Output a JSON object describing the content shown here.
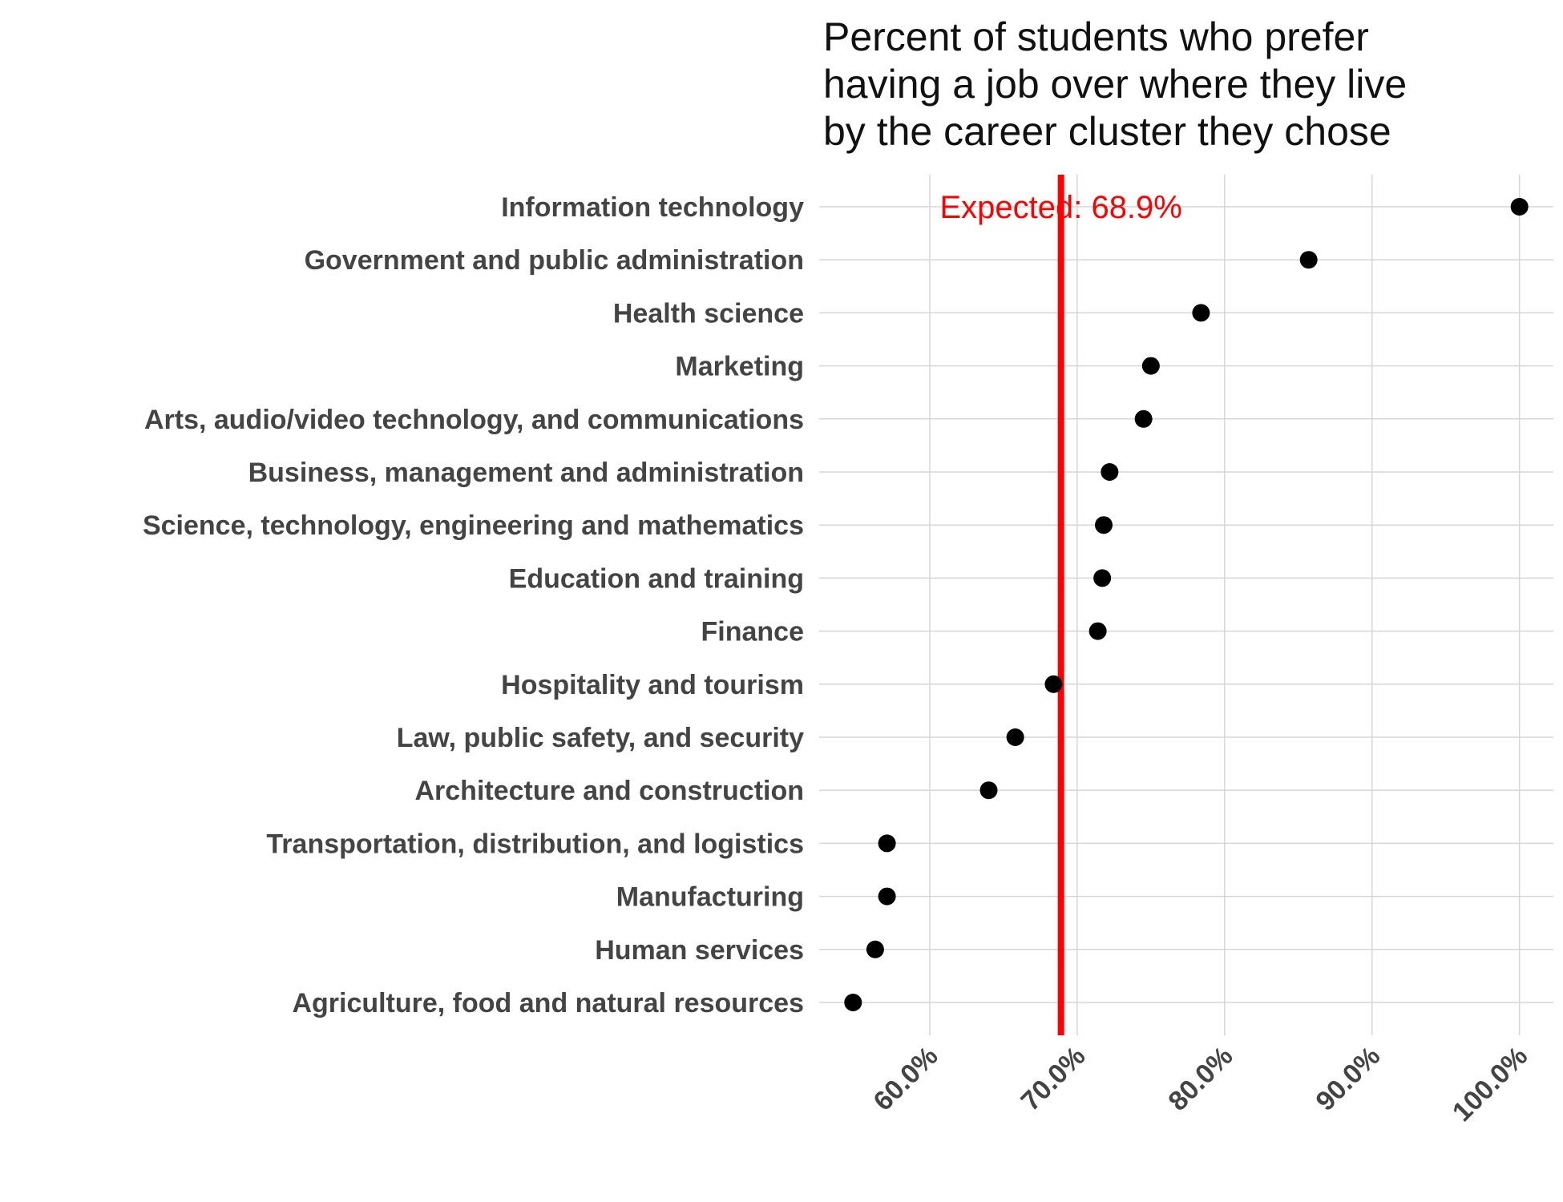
{
  "chart_data": {
    "type": "scatter",
    "title_lines": [
      "Percent of students who prefer",
      "having a job over where they live",
      "by the career cluster they chose"
    ],
    "categories": [
      "Information technology",
      "Government and public administration",
      "Health science",
      "Marketing",
      "Arts, audio/video technology, and communications",
      "Business, management and administration",
      "Science, technology, engineering and mathematics",
      "Education and training",
      "Finance",
      "Hospitality and tourism",
      "Law, public safety, and security",
      "Architecture and construction",
      "Transportation, distribution, and logistics",
      "Manufacturing",
      "Human services",
      "Agriculture, food and natural resources"
    ],
    "values": [
      100.0,
      85.7,
      78.4,
      75.0,
      74.5,
      72.2,
      71.8,
      71.7,
      71.4,
      68.4,
      65.8,
      64.0,
      57.1,
      57.1,
      56.3,
      54.8
    ],
    "x_ticks": [
      "60.0%",
      "70.0%",
      "80.0%",
      "90.0%",
      "100.0%"
    ],
    "x_tick_values": [
      60,
      70,
      80,
      90,
      100
    ],
    "xlim": [
      52.5,
      102.3
    ],
    "reference": {
      "value": 68.9,
      "label": "Expected: 68.9%",
      "color": "#ff0000"
    },
    "point_color": "#000000",
    "grid": true,
    "xlabel": "",
    "ylabel": ""
  }
}
